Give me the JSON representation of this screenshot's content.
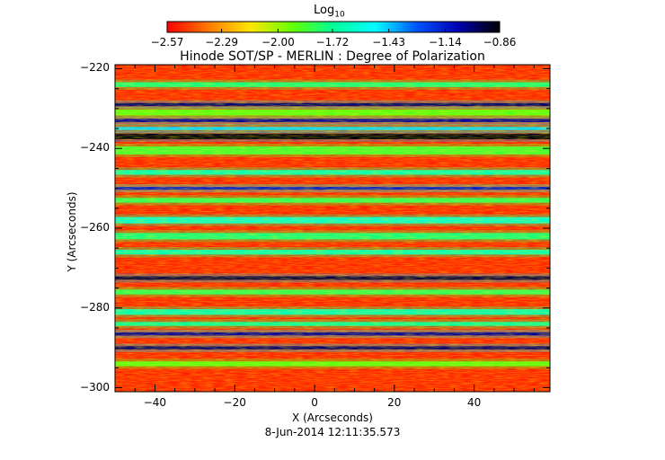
{
  "chart_data": {
    "type": "heatmap",
    "title": "Hinode SOT/SP - MERLIN : Degree of Polarization",
    "xlabel": "X (Arcseconds)",
    "ylabel": "Y (Arcseconds)",
    "xlim": [
      -50,
      59
    ],
    "ylim": [
      -301,
      -219
    ],
    "xticks": [
      -40,
      -20,
      0,
      20,
      40
    ],
    "yticks": [
      -220,
      -240,
      -260,
      -280,
      -300
    ],
    "xtick_labels": [
      "−40",
      "−20",
      "0",
      "20",
      "40"
    ],
    "ytick_labels": [
      "−220",
      "−240",
      "−260",
      "−280",
      "−300"
    ],
    "timestamp": "8-Jun-2014 12:11:35.573",
    "colorbar": {
      "title": "Log",
      "title_sub": "10",
      "range": [
        -2.57,
        -0.86
      ],
      "ticks": [
        -2.57,
        -2.29,
        -2.0,
        -1.72,
        -1.43,
        -1.14,
        -0.86
      ],
      "tick_labels": [
        "−2.57",
        "−2.29",
        "−2.00",
        "−1.72",
        "−1.43",
        "−1.14",
        "−0.86"
      ],
      "stops": [
        "#ff0000",
        "#ff7a00",
        "#ffe600",
        "#66ff00",
        "#00ff99",
        "#00ffff",
        "#0055ff",
        "#0000b0",
        "#000000"
      ]
    },
    "bands": [
      {
        "y": -224.0,
        "width": 1.2,
        "value": -1.75
      },
      {
        "y": -229.0,
        "width": 0.8,
        "value": -1.0
      },
      {
        "y": -231.0,
        "width": 1.5,
        "value": -1.9
      },
      {
        "y": -233.0,
        "width": 0.8,
        "value": -1.05
      },
      {
        "y": -235.0,
        "width": 0.8,
        "value": -1.45
      },
      {
        "y": -237.0,
        "width": 1.4,
        "value": -0.88
      },
      {
        "y": -240.5,
        "width": 2.0,
        "value": -1.85
      },
      {
        "y": -246.0,
        "width": 1.2,
        "value": -1.65
      },
      {
        "y": -250.0,
        "width": 0.7,
        "value": -1.15
      },
      {
        "y": -253.0,
        "width": 1.2,
        "value": -1.8
      },
      {
        "y": -258.0,
        "width": 1.6,
        "value": -1.6
      },
      {
        "y": -262.0,
        "width": 1.6,
        "value": -1.75
      },
      {
        "y": -266.0,
        "width": 1.2,
        "value": -1.65
      },
      {
        "y": -272.5,
        "width": 0.9,
        "value": -0.95
      },
      {
        "y": -276.0,
        "width": 1.2,
        "value": -1.8
      },
      {
        "y": -281.0,
        "width": 1.4,
        "value": -1.65
      },
      {
        "y": -284.0,
        "width": 1.0,
        "value": -1.7
      },
      {
        "y": -286.5,
        "width": 0.8,
        "value": -1.05
      },
      {
        "y": -290.0,
        "width": 0.8,
        "value": -1.0
      },
      {
        "y": -294.0,
        "width": 1.2,
        "value": -1.9
      }
    ]
  }
}
